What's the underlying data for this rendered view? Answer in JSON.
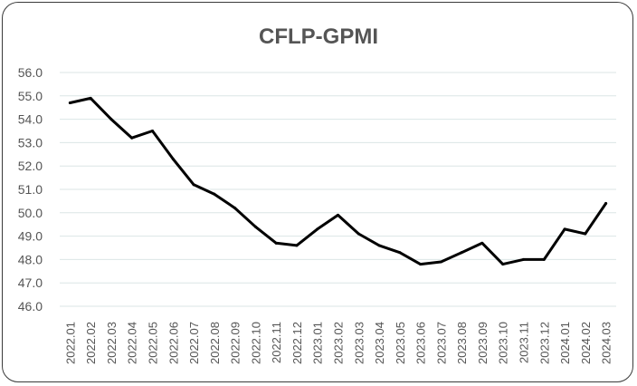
{
  "chart_data": {
    "type": "line",
    "title": "CFLP-GPMI",
    "xlabel": "",
    "ylabel": "",
    "ylim": [
      46.0,
      56.0
    ],
    "yticks": [
      "46.0",
      "47.0",
      "48.0",
      "49.0",
      "50.0",
      "51.0",
      "52.0",
      "53.0",
      "54.0",
      "55.0",
      "56.0"
    ],
    "grid": true,
    "legend": "none",
    "categories": [
      "2022.01",
      "2022.02",
      "2022.03",
      "2022.04",
      "2022.05",
      "2022.06",
      "2022.07",
      "2022.08",
      "2022.09",
      "2022.10",
      "2022.11",
      "2022.12",
      "2023.01",
      "2023.02",
      "2023.03",
      "2023.04",
      "2023.05",
      "2023.06",
      "2023.07",
      "2023.08",
      "2023.09",
      "2023.10",
      "2023.11",
      "2023.12",
      "2024.01",
      "2024.02",
      "2024.03"
    ],
    "series": [
      {
        "values": [
          54.7,
          54.9,
          54.0,
          53.2,
          53.5,
          52.3,
          51.2,
          50.8,
          50.2,
          49.4,
          48.7,
          48.6,
          49.3,
          49.9,
          49.1,
          48.6,
          48.3,
          47.8,
          47.9,
          48.3,
          48.7,
          47.8,
          48.0,
          48.0,
          49.3,
          49.1,
          50.4
        ],
        "color": "#000000"
      }
    ]
  }
}
